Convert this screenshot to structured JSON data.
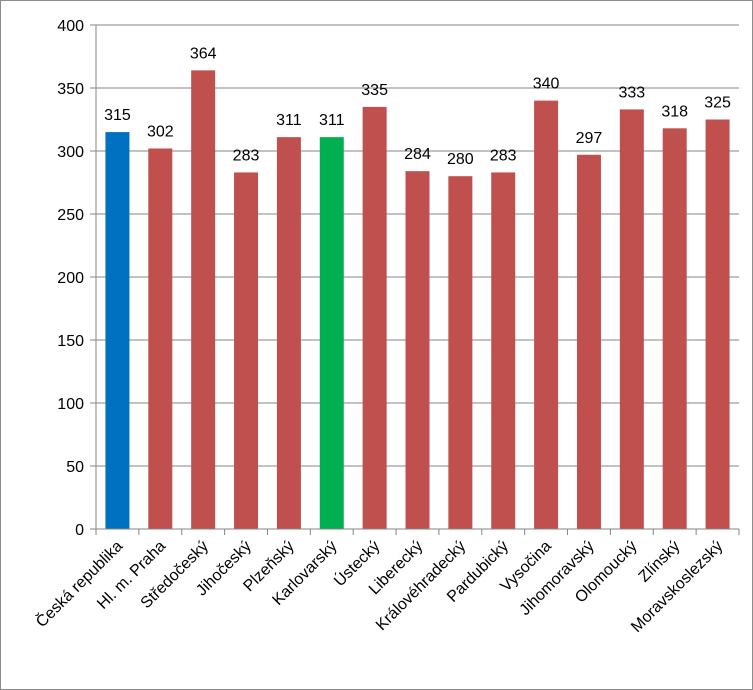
{
  "chart_data": {
    "type": "bar",
    "title": "",
    "xlabel": "",
    "ylabel": "",
    "ylim": [
      0,
      400
    ],
    "yticks": [
      0,
      50,
      100,
      150,
      200,
      250,
      300,
      350,
      400
    ],
    "grid": "horizontal",
    "legend": "none",
    "categories": [
      "Česká republika",
      "Hl. m. Praha",
      "Středočeský",
      "Jihočeský",
      "Plzeňský",
      "Karlovarský",
      "Ústecký",
      "Liberecký",
      "Královéhradecký",
      "Pardubický",
      "Vysočina",
      "Jihomoravský",
      "Olomoucký",
      "Zlínský",
      "Moravskoslezský"
    ],
    "values": [
      315,
      302,
      364,
      283,
      311,
      311,
      335,
      284,
      280,
      283,
      340,
      297,
      333,
      318,
      325
    ],
    "bar_colors": [
      "#0070c0",
      "#c0504d",
      "#c0504d",
      "#c0504d",
      "#c0504d",
      "#00b050",
      "#c0504d",
      "#c0504d",
      "#c0504d",
      "#c0504d",
      "#c0504d",
      "#c0504d",
      "#c0504d",
      "#c0504d",
      "#c0504d"
    ],
    "data_labels": true
  }
}
